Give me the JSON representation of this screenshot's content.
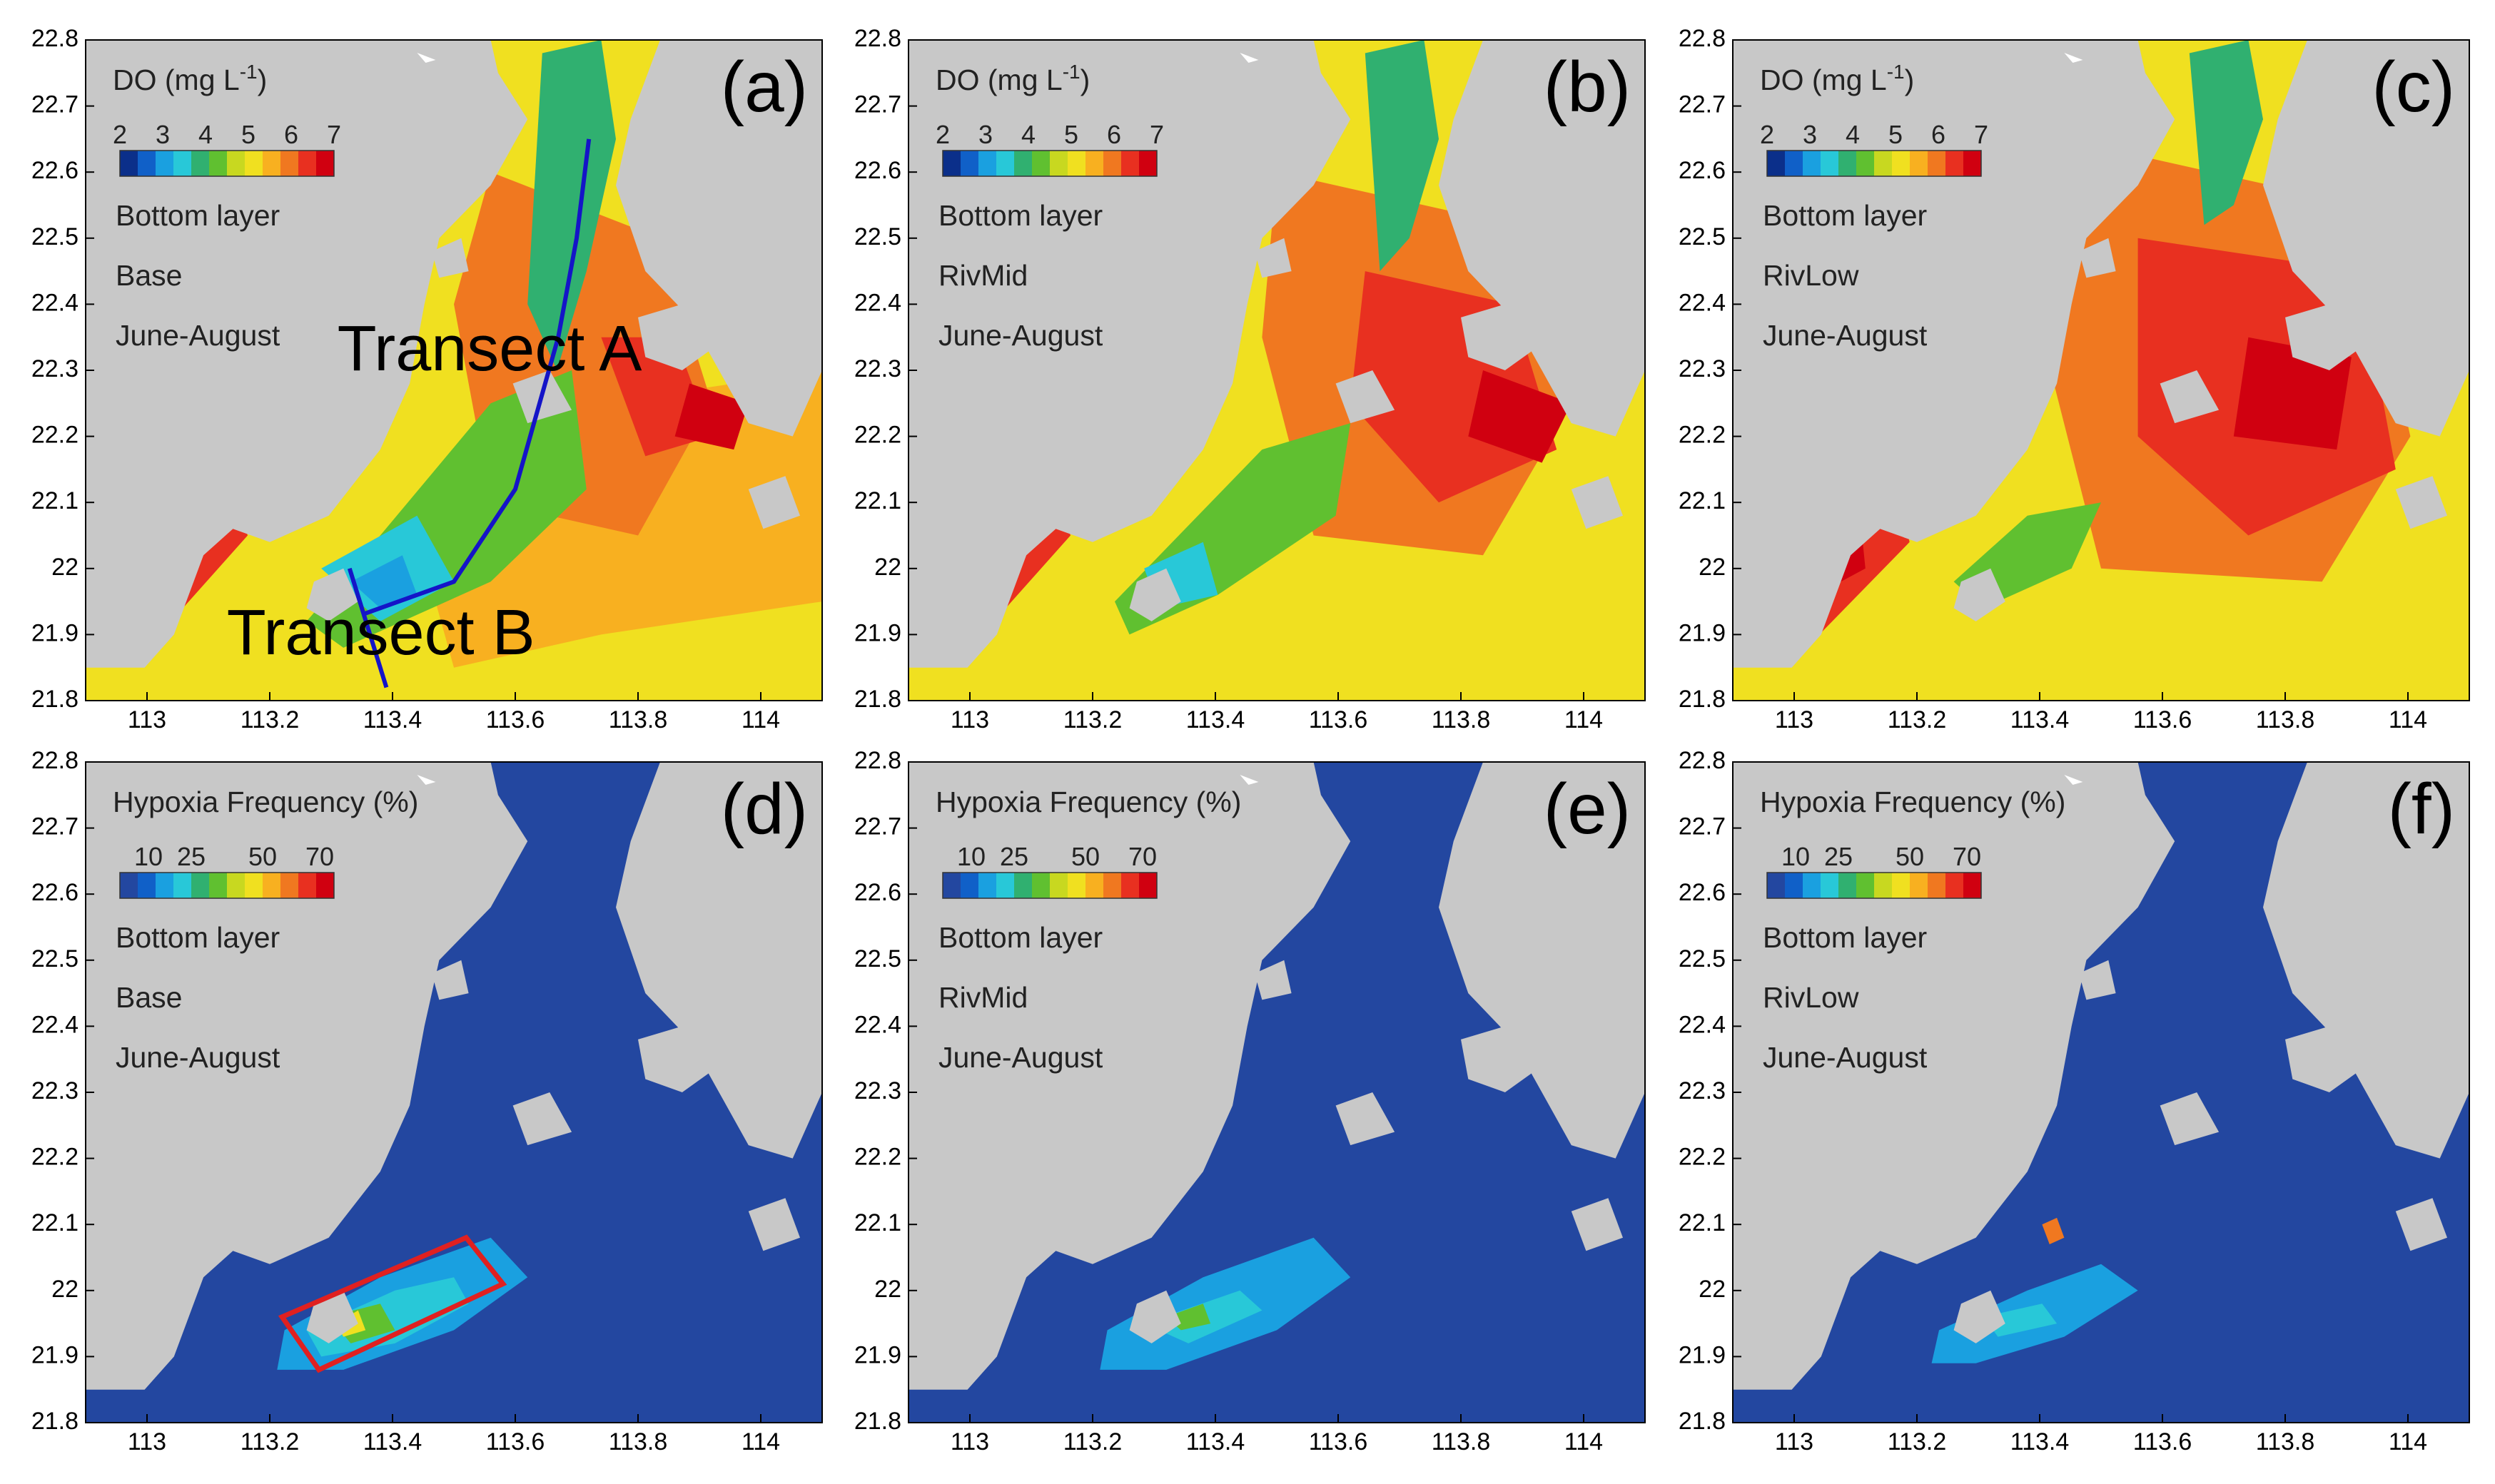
{
  "chart_data": [
    {
      "id": "a",
      "type": "heatmap",
      "panel_label": "(a)",
      "variable": "DO",
      "title": "DO (mg L",
      "title_sup": "-1",
      "title_close": ")",
      "colorbar_ticks": [
        "2",
        "3",
        "4",
        "5",
        "6",
        "7"
      ],
      "colorbar_range": [
        2,
        7
      ],
      "layer": "Bottom layer",
      "scenario": "Base",
      "period": "June-August",
      "xticks": [
        "113",
        "113.2",
        "113.4",
        "113.6",
        "113.8",
        "114"
      ],
      "yticks": [
        "22.8",
        "22.7",
        "22.6",
        "22.5",
        "22.4",
        "22.3",
        "22.2",
        "22.1",
        "22",
        "21.9",
        "21.8"
      ],
      "xlim": [
        112.9,
        114.1
      ],
      "ylim": [
        21.8,
        22.8
      ],
      "annotations": [
        "Transect A",
        "Transect B"
      ],
      "transect_a": [
        [
          113.72,
          22.65
        ],
        [
          113.7,
          22.5
        ],
        [
          113.67,
          22.35
        ],
        [
          113.6,
          22.12
        ],
        [
          113.5,
          21.98
        ],
        [
          113.35,
          21.93
        ]
      ],
      "transect_b": [
        [
          113.33,
          22.0
        ],
        [
          113.39,
          21.82
        ]
      ]
    },
    {
      "id": "b",
      "type": "heatmap",
      "panel_label": "(b)",
      "variable": "DO",
      "title": "DO (mg L",
      "title_sup": "-1",
      "title_close": ")",
      "colorbar_ticks": [
        "2",
        "3",
        "4",
        "5",
        "6",
        "7"
      ],
      "colorbar_range": [
        2,
        7
      ],
      "layer": "Bottom layer",
      "scenario": "RivMid",
      "period": "June-August",
      "xticks": [
        "113",
        "113.2",
        "113.4",
        "113.6",
        "113.8",
        "114"
      ],
      "yticks": [
        "22.8",
        "22.7",
        "22.6",
        "22.5",
        "22.4",
        "22.3",
        "22.2",
        "22.1",
        "22",
        "21.9",
        "21.8"
      ],
      "xlim": [
        112.9,
        114.1
      ],
      "ylim": [
        21.8,
        22.8
      ]
    },
    {
      "id": "c",
      "type": "heatmap",
      "panel_label": "(c)",
      "variable": "DO",
      "title": "DO (mg L",
      "title_sup": "-1",
      "title_close": ")",
      "colorbar_ticks": [
        "2",
        "3",
        "4",
        "5",
        "6",
        "7"
      ],
      "colorbar_range": [
        2,
        7
      ],
      "layer": "Bottom layer",
      "scenario": "RivLow",
      "period": "June-August",
      "xticks": [
        "113",
        "113.2",
        "113.4",
        "113.6",
        "113.8",
        "114"
      ],
      "yticks": [
        "22.8",
        "22.7",
        "22.6",
        "22.5",
        "22.4",
        "22.3",
        "22.2",
        "22.1",
        "22",
        "21.9",
        "21.8"
      ],
      "xlim": [
        112.9,
        114.1
      ],
      "ylim": [
        21.8,
        22.8
      ]
    },
    {
      "id": "d",
      "type": "heatmap",
      "panel_label": "(d)",
      "variable": "Hypoxia Frequency",
      "title": "Hypoxia Frequency (%)",
      "colorbar_ticks": [
        "10",
        "25",
        "50",
        "70"
      ],
      "colorbar_range": [
        0,
        75
      ],
      "layer": "Bottom layer",
      "scenario": "Base",
      "period": "June-August",
      "xticks": [
        "113",
        "113.2",
        "113.4",
        "113.6",
        "113.8",
        "114"
      ],
      "yticks": [
        "22.8",
        "22.7",
        "22.6",
        "22.5",
        "22.4",
        "22.3",
        "22.2",
        "22.1",
        "22",
        "21.9",
        "21.8"
      ],
      "xlim": [
        112.9,
        114.1
      ],
      "ylim": [
        21.8,
        22.8
      ],
      "highlight_box": [
        [
          113.22,
          21.96
        ],
        [
          113.52,
          22.08
        ],
        [
          113.58,
          22.01
        ],
        [
          113.28,
          21.88
        ]
      ]
    },
    {
      "id": "e",
      "type": "heatmap",
      "panel_label": "(e)",
      "variable": "Hypoxia Frequency",
      "title": "Hypoxia Frequency (%)",
      "colorbar_ticks": [
        "10",
        "25",
        "50",
        "70"
      ],
      "colorbar_range": [
        0,
        75
      ],
      "layer": "Bottom layer",
      "scenario": "RivMid",
      "period": "June-August",
      "xticks": [
        "113",
        "113.2",
        "113.4",
        "113.6",
        "113.8",
        "114"
      ],
      "yticks": [
        "22.8",
        "22.7",
        "22.6",
        "22.5",
        "22.4",
        "22.3",
        "22.2",
        "22.1",
        "22",
        "21.9",
        "21.8"
      ],
      "xlim": [
        112.9,
        114.1
      ],
      "ylim": [
        21.8,
        22.8
      ]
    },
    {
      "id": "f",
      "type": "heatmap",
      "panel_label": "(f)",
      "variable": "Hypoxia Frequency",
      "title": "Hypoxia Frequency (%)",
      "colorbar_ticks": [
        "10",
        "25",
        "50",
        "70"
      ],
      "colorbar_range": [
        0,
        75
      ],
      "layer": "Bottom layer",
      "scenario": "RivLow",
      "period": "June-August",
      "xticks": [
        "113",
        "113.2",
        "113.4",
        "113.6",
        "113.8",
        "114"
      ],
      "yticks": [
        "22.8",
        "22.7",
        "22.6",
        "22.5",
        "22.4",
        "22.3",
        "22.2",
        "22.1",
        "22",
        "21.9",
        "21.8"
      ],
      "xlim": [
        112.9,
        114.1
      ],
      "ylim": [
        21.8,
        22.8
      ]
    }
  ],
  "colors": {
    "land": "#c8c8c8",
    "hypoxia_background": "#2347a0",
    "transect_line": "#1414c8",
    "highlight_box": "#e02020",
    "do_colormap": [
      "#0b2f8a",
      "#1060c8",
      "#1aa0e0",
      "#28c8d8",
      "#30b070",
      "#60c030",
      "#c8d820",
      "#f0e020",
      "#f8b020",
      "#f07820",
      "#e83020",
      "#d00010"
    ],
    "hypoxia_colormap": [
      "#2347a0",
      "#1060c8",
      "#1aa0e0",
      "#28c8d8",
      "#30b070",
      "#60c030",
      "#c8d820",
      "#f0e020",
      "#f8b020",
      "#f07820",
      "#e83020",
      "#d00010"
    ]
  }
}
